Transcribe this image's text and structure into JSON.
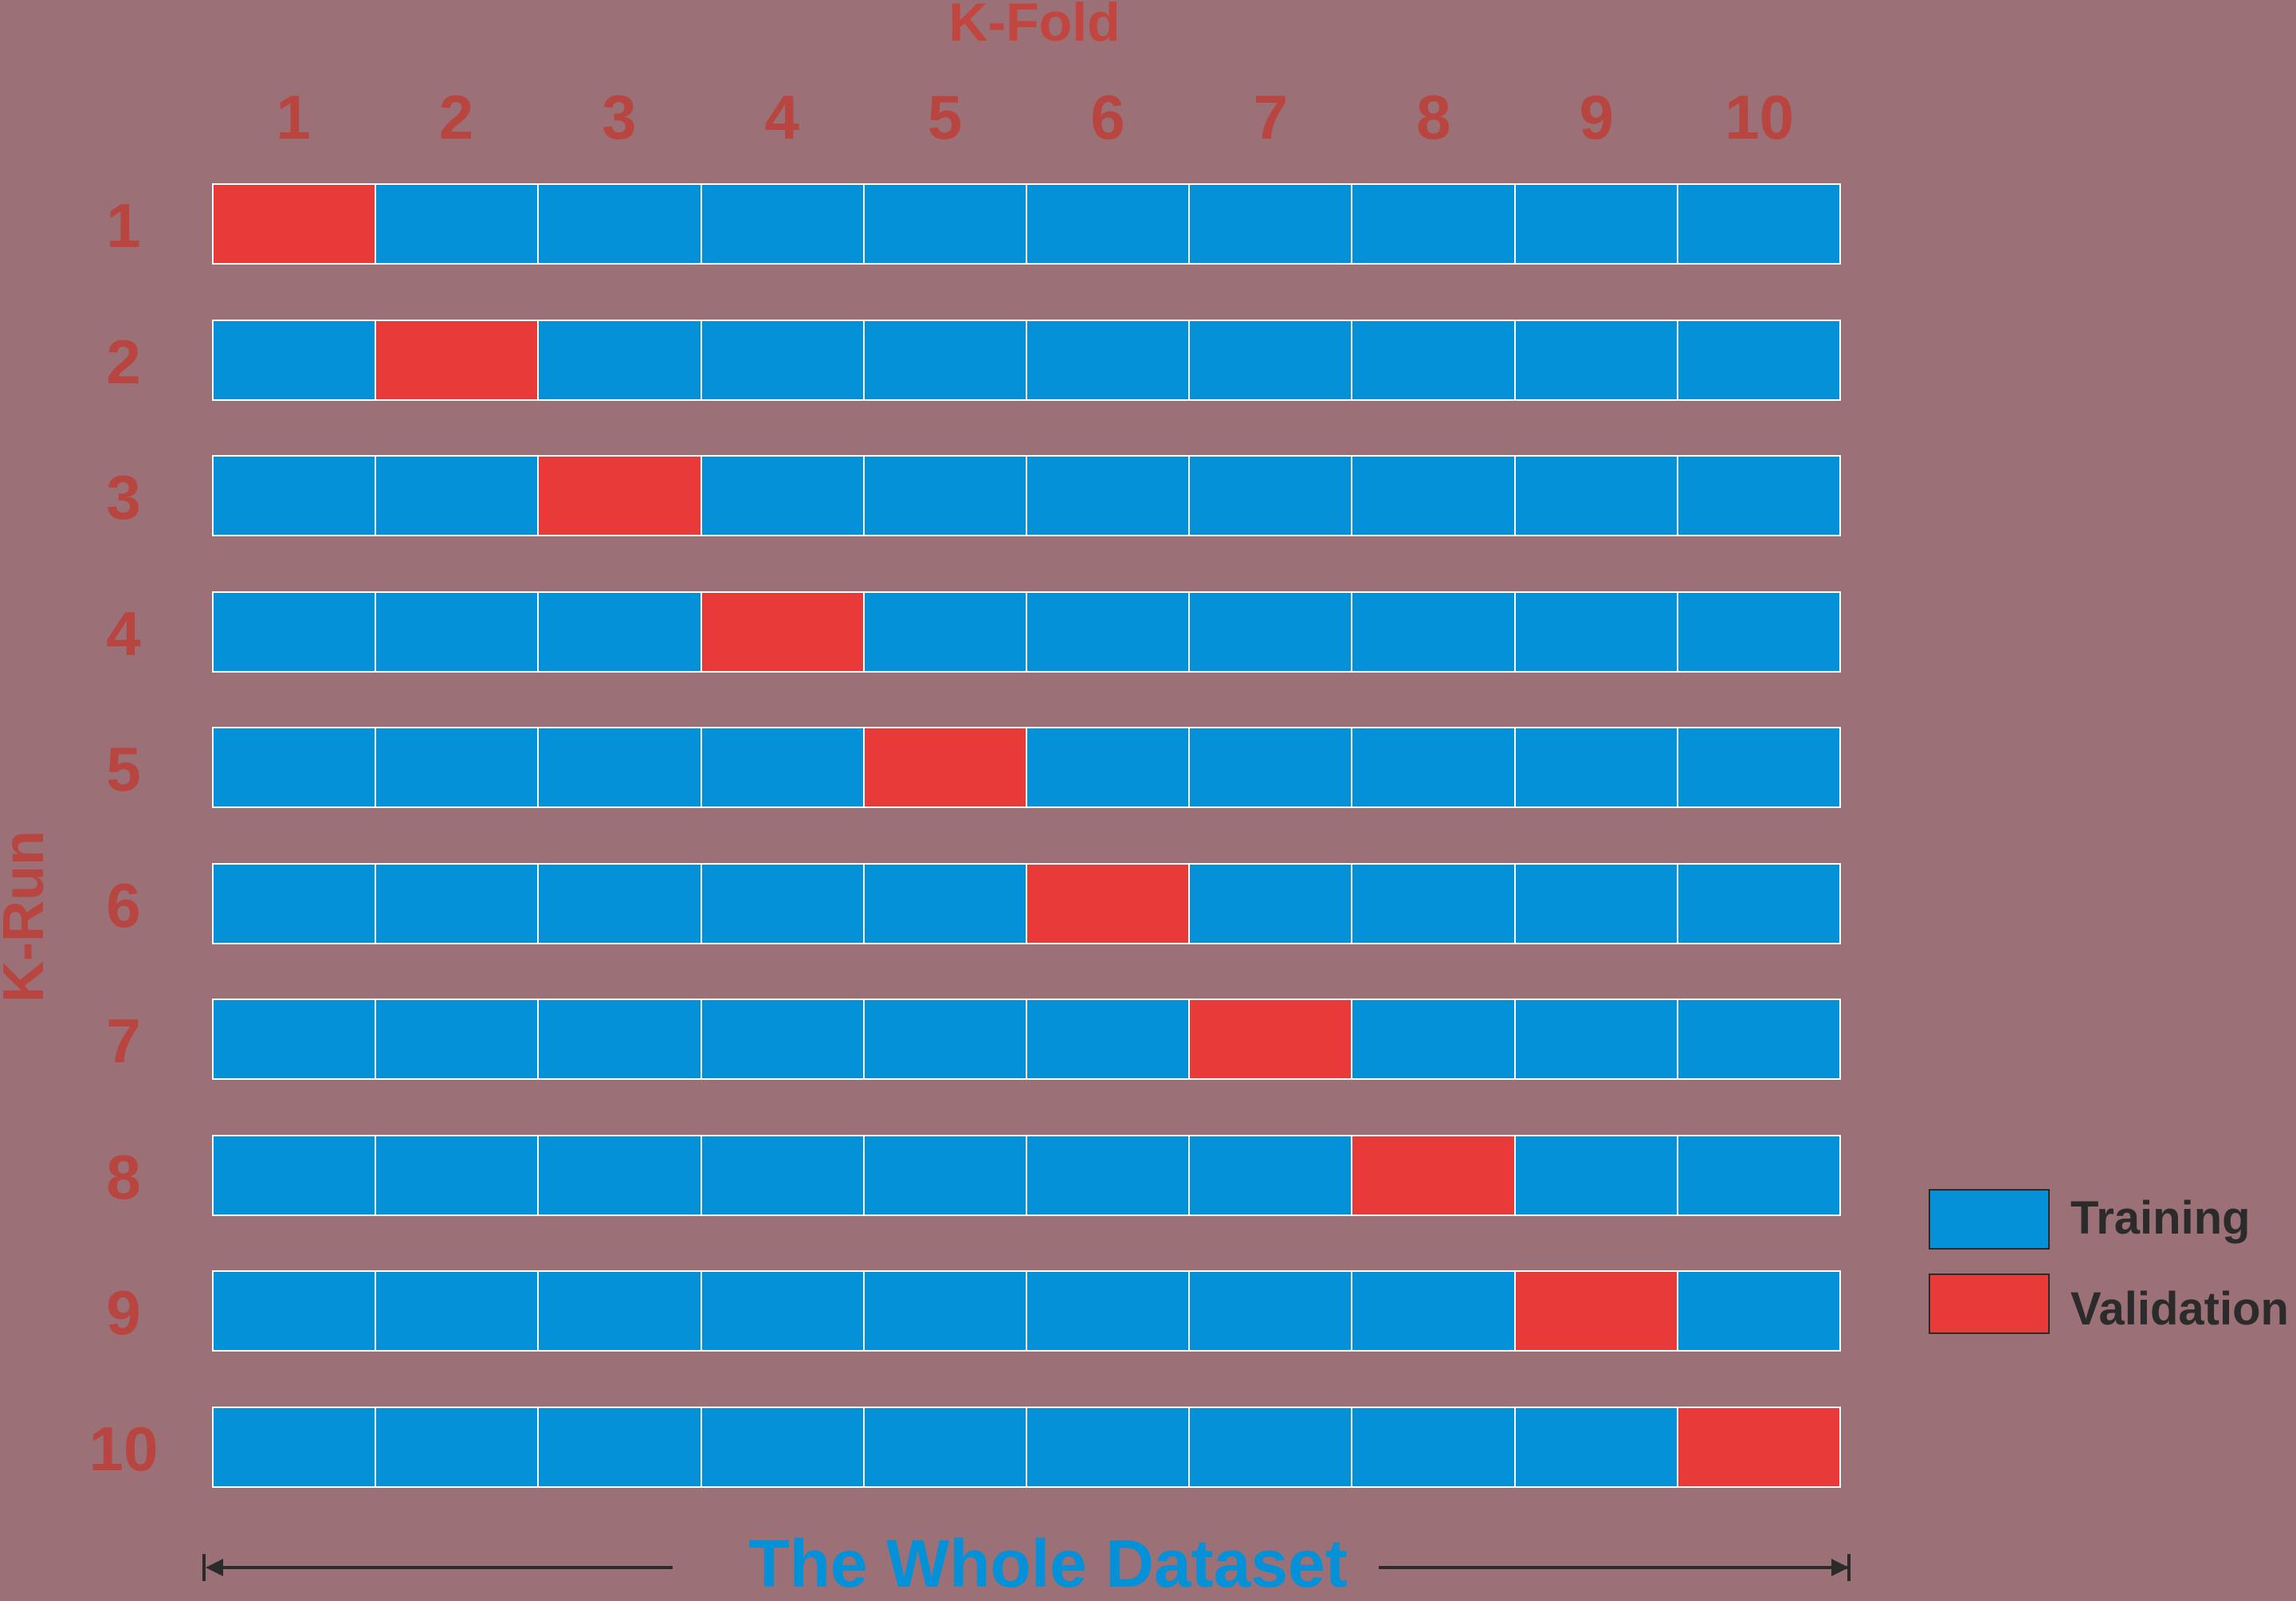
{
  "title": "K-Fold",
  "vertical_label": "K-Run",
  "columns": [
    "1",
    "2",
    "3",
    "4",
    "5",
    "6",
    "7",
    "8",
    "9",
    "10"
  ],
  "rows": [
    "1",
    "2",
    "3",
    "4",
    "5",
    "6",
    "7",
    "8",
    "9",
    "10"
  ],
  "validation_fold_by_run": [
    1,
    2,
    3,
    4,
    5,
    6,
    7,
    8,
    9,
    10
  ],
  "legend": {
    "training_label": "Training",
    "validation_label": "Validation"
  },
  "dataset_label": "The Whole Dataset",
  "colors": {
    "background": "#9b7076",
    "training": "#0591d8",
    "validation": "#e93a3a",
    "labels": "#b8453f"
  }
}
